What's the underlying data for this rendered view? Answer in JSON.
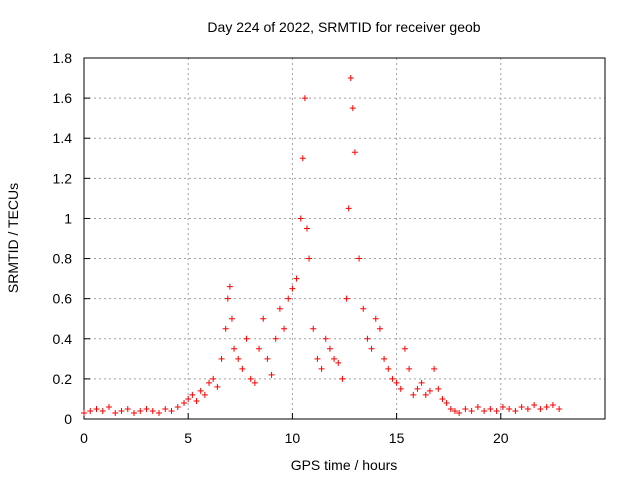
{
  "chart_data": {
    "type": "scatter",
    "title": "Day 224 of 2022, SRMTID for receiver geob",
    "xlabel": "GPS time / hours",
    "ylabel": "SRMTID / TECUs",
    "xlim": [
      0,
      25
    ],
    "ylim": [
      0,
      1.8
    ],
    "xticks": [
      0,
      5,
      10,
      15,
      20
    ],
    "xtick_labels": [
      "0",
      "5",
      "10",
      "15",
      "20"
    ],
    "yticks": [
      0,
      0.2,
      0.4,
      0.6,
      0.8,
      1,
      1.2,
      1.4,
      1.6,
      1.8
    ],
    "ytick_labels": [
      "0",
      "0.2",
      "0.4",
      "0.6",
      "0.8",
      "1",
      "1.2",
      "1.4",
      "1.6",
      "1.8"
    ],
    "grid": true,
    "marker": "+",
    "color": "#ff0000",
    "series": [
      {
        "name": "SRMTID",
        "x": [
          0.0,
          0.3,
          0.6,
          0.9,
          1.2,
          1.5,
          1.8,
          2.1,
          2.4,
          2.7,
          3.0,
          3.3,
          3.6,
          3.9,
          4.2,
          4.5,
          4.8,
          5.0,
          5.2,
          5.4,
          5.6,
          5.8,
          6.0,
          6.2,
          6.4,
          6.6,
          6.8,
          6.9,
          7.0,
          7.1,
          7.2,
          7.4,
          7.6,
          7.8,
          8.0,
          8.2,
          8.4,
          8.6,
          8.8,
          9.0,
          9.2,
          9.4,
          9.6,
          9.8,
          10.0,
          10.2,
          10.4,
          10.5,
          10.6,
          10.7,
          10.8,
          11.0,
          11.2,
          11.4,
          11.6,
          11.8,
          12.0,
          12.2,
          12.4,
          12.6,
          12.7,
          12.8,
          12.9,
          13.0,
          13.2,
          13.4,
          13.6,
          13.8,
          14.0,
          14.2,
          14.4,
          14.6,
          14.8,
          15.0,
          15.2,
          15.4,
          15.6,
          15.8,
          16.0,
          16.2,
          16.4,
          16.6,
          16.8,
          17.0,
          17.2,
          17.4,
          17.6,
          17.8,
          18.0,
          18.3,
          18.6,
          18.9,
          19.2,
          19.5,
          19.8,
          20.1,
          20.4,
          20.7,
          21.0,
          21.3,
          21.6,
          21.9,
          22.2,
          22.5,
          22.8
        ],
        "y": [
          0.03,
          0.04,
          0.05,
          0.04,
          0.06,
          0.03,
          0.04,
          0.05,
          0.03,
          0.04,
          0.05,
          0.04,
          0.03,
          0.05,
          0.04,
          0.06,
          0.08,
          0.1,
          0.12,
          0.09,
          0.14,
          0.12,
          0.18,
          0.2,
          0.16,
          0.3,
          0.45,
          0.6,
          0.66,
          0.5,
          0.35,
          0.3,
          0.25,
          0.4,
          0.2,
          0.18,
          0.35,
          0.5,
          0.3,
          0.22,
          0.4,
          0.55,
          0.45,
          0.6,
          0.65,
          0.7,
          1.0,
          1.3,
          1.6,
          0.95,
          0.8,
          0.45,
          0.3,
          0.25,
          0.4,
          0.35,
          0.3,
          0.28,
          0.2,
          0.6,
          1.05,
          1.7,
          1.55,
          1.33,
          0.8,
          0.55,
          0.4,
          0.35,
          0.5,
          0.45,
          0.3,
          0.25,
          0.2,
          0.18,
          0.15,
          0.35,
          0.25,
          0.12,
          0.15,
          0.18,
          0.12,
          0.14,
          0.25,
          0.15,
          0.1,
          0.08,
          0.05,
          0.04,
          0.03,
          0.05,
          0.04,
          0.06,
          0.04,
          0.05,
          0.04,
          0.06,
          0.05,
          0.04,
          0.06,
          0.05,
          0.07,
          0.05,
          0.06,
          0.07,
          0.05
        ]
      }
    ]
  }
}
